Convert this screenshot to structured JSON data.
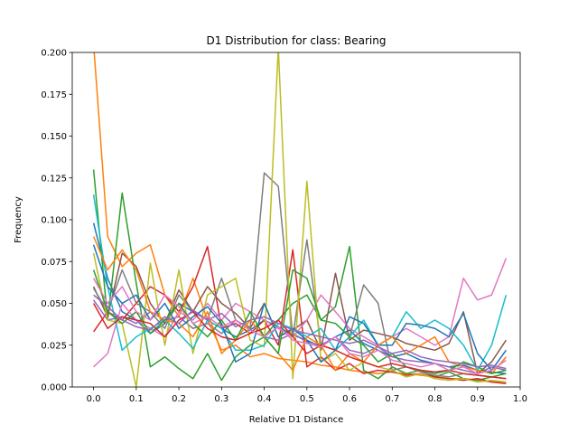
{
  "chart_data": {
    "type": "line",
    "title": "D1 Distribution for class: Bearing",
    "xlabel": "Relative D1 Distance",
    "ylabel": "Frequency",
    "xlim": [
      -0.05,
      1.0
    ],
    "ylim": [
      0.0,
      0.2
    ],
    "xticks": [
      "0.0",
      "0.1",
      "0.2",
      "0.3",
      "0.4",
      "0.5",
      "0.6",
      "0.7",
      "0.8",
      "0.9",
      "1.0"
    ],
    "yticks": [
      "0.000",
      "0.025",
      "0.050",
      "0.075",
      "0.100",
      "0.125",
      "0.150",
      "0.175",
      "0.200"
    ],
    "grid": false,
    "x": [
      0.0,
      0.033,
      0.067,
      0.1,
      0.133,
      0.167,
      0.2,
      0.233,
      0.267,
      0.3,
      0.333,
      0.367,
      0.4,
      0.433,
      0.467,
      0.5,
      0.533,
      0.567,
      0.6,
      0.633,
      0.667,
      0.7,
      0.733,
      0.767,
      0.8,
      0.833,
      0.867,
      0.9,
      0.933,
      0.967
    ],
    "series": [
      {
        "color": "#1f77b4",
        "values": [
          0.098,
          0.065,
          0.045,
          0.04,
          0.032,
          0.038,
          0.05,
          0.045,
          0.04,
          0.035,
          0.03,
          0.034,
          0.04,
          0.036,
          0.031,
          0.028,
          0.024,
          0.03,
          0.034,
          0.026,
          0.022,
          0.018,
          0.02,
          0.016,
          0.014,
          0.012,
          0.013,
          0.01,
          0.009,
          0.008
        ]
      },
      {
        "color": "#ff7f0e",
        "values": [
          0.205,
          0.09,
          0.072,
          0.08,
          0.085,
          0.055,
          0.042,
          0.065,
          0.04,
          0.022,
          0.025,
          0.018,
          0.02,
          0.017,
          0.016,
          0.015,
          0.013,
          0.012,
          0.01,
          0.009,
          0.008,
          0.009,
          0.008,
          0.007,
          0.006,
          0.005,
          0.005,
          0.004,
          0.003,
          0.003
        ]
      },
      {
        "color": "#2ca02c",
        "values": [
          0.13,
          0.04,
          0.116,
          0.062,
          0.012,
          0.018,
          0.011,
          0.005,
          0.02,
          0.004,
          0.018,
          0.025,
          0.03,
          0.04,
          0.05,
          0.055,
          0.04,
          0.048,
          0.084,
          0.01,
          0.005,
          0.012,
          0.008,
          0.01,
          0.006,
          0.009,
          0.005,
          0.004,
          0.006,
          0.008
        ]
      },
      {
        "color": "#d62728",
        "values": [
          0.033,
          0.045,
          0.04,
          0.05,
          0.06,
          0.055,
          0.045,
          0.06,
          0.084,
          0.035,
          0.038,
          0.032,
          0.04,
          0.025,
          0.082,
          0.012,
          0.018,
          0.01,
          0.014,
          0.008,
          0.01,
          0.009,
          0.007,
          0.008,
          0.006,
          0.005,
          0.004,
          0.005,
          0.003,
          0.002
        ]
      },
      {
        "color": "#9467bd",
        "values": [
          0.052,
          0.04,
          0.042,
          0.038,
          0.045,
          0.04,
          0.042,
          0.035,
          0.038,
          0.032,
          0.04,
          0.034,
          0.03,
          0.028,
          0.032,
          0.027,
          0.025,
          0.03,
          0.022,
          0.02,
          0.024,
          0.018,
          0.016,
          0.015,
          0.014,
          0.012,
          0.01,
          0.008,
          0.012,
          0.01
        ]
      },
      {
        "color": "#8c564b",
        "values": [
          0.06,
          0.042,
          0.08,
          0.072,
          0.05,
          0.038,
          0.058,
          0.045,
          0.06,
          0.05,
          0.044,
          0.035,
          0.05,
          0.03,
          0.034,
          0.04,
          0.022,
          0.068,
          0.028,
          0.034,
          0.032,
          0.03,
          0.026,
          0.024,
          0.022,
          0.026,
          0.045,
          0.008,
          0.015,
          0.028
        ]
      },
      {
        "color": "#e377c2",
        "values": [
          0.012,
          0.02,
          0.05,
          0.04,
          0.035,
          0.03,
          0.045,
          0.04,
          0.05,
          0.04,
          0.05,
          0.045,
          0.04,
          0.035,
          0.03,
          0.04,
          0.055,
          0.045,
          0.035,
          0.03,
          0.025,
          0.03,
          0.035,
          0.03,
          0.025,
          0.03,
          0.065,
          0.052,
          0.055,
          0.077
        ]
      },
      {
        "color": "#7f7f7f",
        "values": [
          0.059,
          0.045,
          0.07,
          0.05,
          0.045,
          0.035,
          0.055,
          0.045,
          0.04,
          0.065,
          0.04,
          0.035,
          0.128,
          0.12,
          0.03,
          0.088,
          0.025,
          0.022,
          0.03,
          0.061,
          0.05,
          0.01,
          0.012,
          0.009,
          0.007,
          0.006,
          0.008,
          0.007,
          0.006,
          0.005
        ]
      },
      {
        "color": "#bcbd22",
        "values": [
          0.08,
          0.04,
          0.038,
          0.0,
          0.074,
          0.025,
          0.07,
          0.02,
          0.055,
          0.06,
          0.065,
          0.028,
          0.024,
          0.203,
          0.005,
          0.123,
          0.015,
          0.02,
          0.01,
          0.015,
          0.012,
          0.01,
          0.006,
          0.008,
          0.005,
          0.004,
          0.005,
          0.003,
          0.004,
          0.003
        ]
      },
      {
        "color": "#17becf",
        "values": [
          0.115,
          0.06,
          0.022,
          0.03,
          0.035,
          0.04,
          0.032,
          0.023,
          0.04,
          0.035,
          0.022,
          0.022,
          0.025,
          0.038,
          0.035,
          0.03,
          0.035,
          0.022,
          0.03,
          0.04,
          0.025,
          0.03,
          0.045,
          0.035,
          0.04,
          0.035,
          0.025,
          0.01,
          0.025,
          0.055
        ]
      },
      {
        "color": "#1f77b4",
        "values": [
          0.085,
          0.06,
          0.05,
          0.055,
          0.04,
          0.05,
          0.035,
          0.042,
          0.048,
          0.038,
          0.015,
          0.02,
          0.05,
          0.03,
          0.035,
          0.028,
          0.015,
          0.022,
          0.042,
          0.038,
          0.025,
          0.025,
          0.038,
          0.037,
          0.035,
          0.03,
          0.044,
          0.02,
          0.01,
          0.022
        ]
      },
      {
        "color": "#ff7f0e",
        "values": [
          0.09,
          0.07,
          0.082,
          0.07,
          0.045,
          0.04,
          0.038,
          0.03,
          0.045,
          0.02,
          0.028,
          0.04,
          0.03,
          0.02,
          0.01,
          0.03,
          0.025,
          0.01,
          0.02,
          0.015,
          0.025,
          0.03,
          0.02,
          0.025,
          0.03,
          0.015,
          0.012,
          0.01,
          0.008,
          0.018
        ]
      },
      {
        "color": "#2ca02c",
        "values": [
          0.07,
          0.045,
          0.038,
          0.045,
          0.032,
          0.04,
          0.05,
          0.038,
          0.03,
          0.04,
          0.028,
          0.045,
          0.03,
          0.02,
          0.07,
          0.065,
          0.04,
          0.038,
          0.03,
          0.025,
          0.015,
          0.02,
          0.012,
          0.01,
          0.008,
          0.01,
          0.015,
          0.012,
          0.008,
          0.01
        ]
      },
      {
        "color": "#d62728",
        "values": [
          0.05,
          0.035,
          0.042,
          0.04,
          0.038,
          0.03,
          0.04,
          0.045,
          0.035,
          0.03,
          0.028,
          0.032,
          0.035,
          0.04,
          0.03,
          0.02,
          0.025,
          0.022,
          0.018,
          0.015,
          0.012,
          0.014,
          0.012,
          0.01,
          0.009,
          0.01,
          0.008,
          0.007,
          0.006,
          0.005
        ]
      },
      {
        "color": "#9467bd",
        "values": [
          0.055,
          0.048,
          0.04,
          0.036,
          0.034,
          0.042,
          0.038,
          0.046,
          0.04,
          0.044,
          0.036,
          0.04,
          0.042,
          0.038,
          0.034,
          0.032,
          0.03,
          0.028,
          0.026,
          0.028,
          0.024,
          0.02,
          0.022,
          0.018,
          0.016,
          0.015,
          0.014,
          0.012,
          0.013,
          0.011
        ]
      },
      {
        "color": "#e377c2",
        "values": [
          0.065,
          0.05,
          0.06,
          0.045,
          0.04,
          0.055,
          0.048,
          0.038,
          0.042,
          0.036,
          0.04,
          0.034,
          0.03,
          0.036,
          0.028,
          0.026,
          0.024,
          0.03,
          0.02,
          0.018,
          0.022,
          0.016,
          0.014,
          0.012,
          0.014,
          0.01,
          0.012,
          0.008,
          0.01,
          0.016
        ]
      }
    ]
  }
}
